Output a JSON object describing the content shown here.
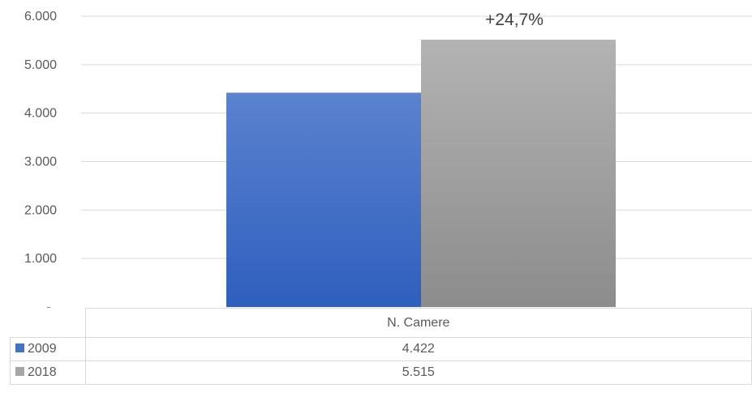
{
  "chart_data": {
    "type": "bar",
    "categories": [
      "N. Camere"
    ],
    "series": [
      {
        "name": "2009",
        "values": [
          4422
        ],
        "color": "#4472c4"
      },
      {
        "name": "2018",
        "values": [
          5515
        ],
        "color": "#a5a5a5"
      }
    ],
    "ylim": [
      0,
      6000
    ],
    "yticks": [
      {
        "value": 0,
        "label": "-"
      },
      {
        "value": 1000,
        "label": "1.000"
      },
      {
        "value": 2000,
        "label": "2.000"
      },
      {
        "value": 3000,
        "label": "3.000"
      },
      {
        "value": 4000,
        "label": "4.000"
      },
      {
        "value": 5000,
        "label": "5.000"
      },
      {
        "value": 6000,
        "label": "6.000"
      }
    ],
    "grid": true,
    "annotation": "+24,7%",
    "data_table": {
      "header": "N. Camere",
      "rows": [
        {
          "label": "2009",
          "value": "4.422"
        },
        {
          "label": "2018",
          "value": "5.515"
        }
      ]
    }
  }
}
